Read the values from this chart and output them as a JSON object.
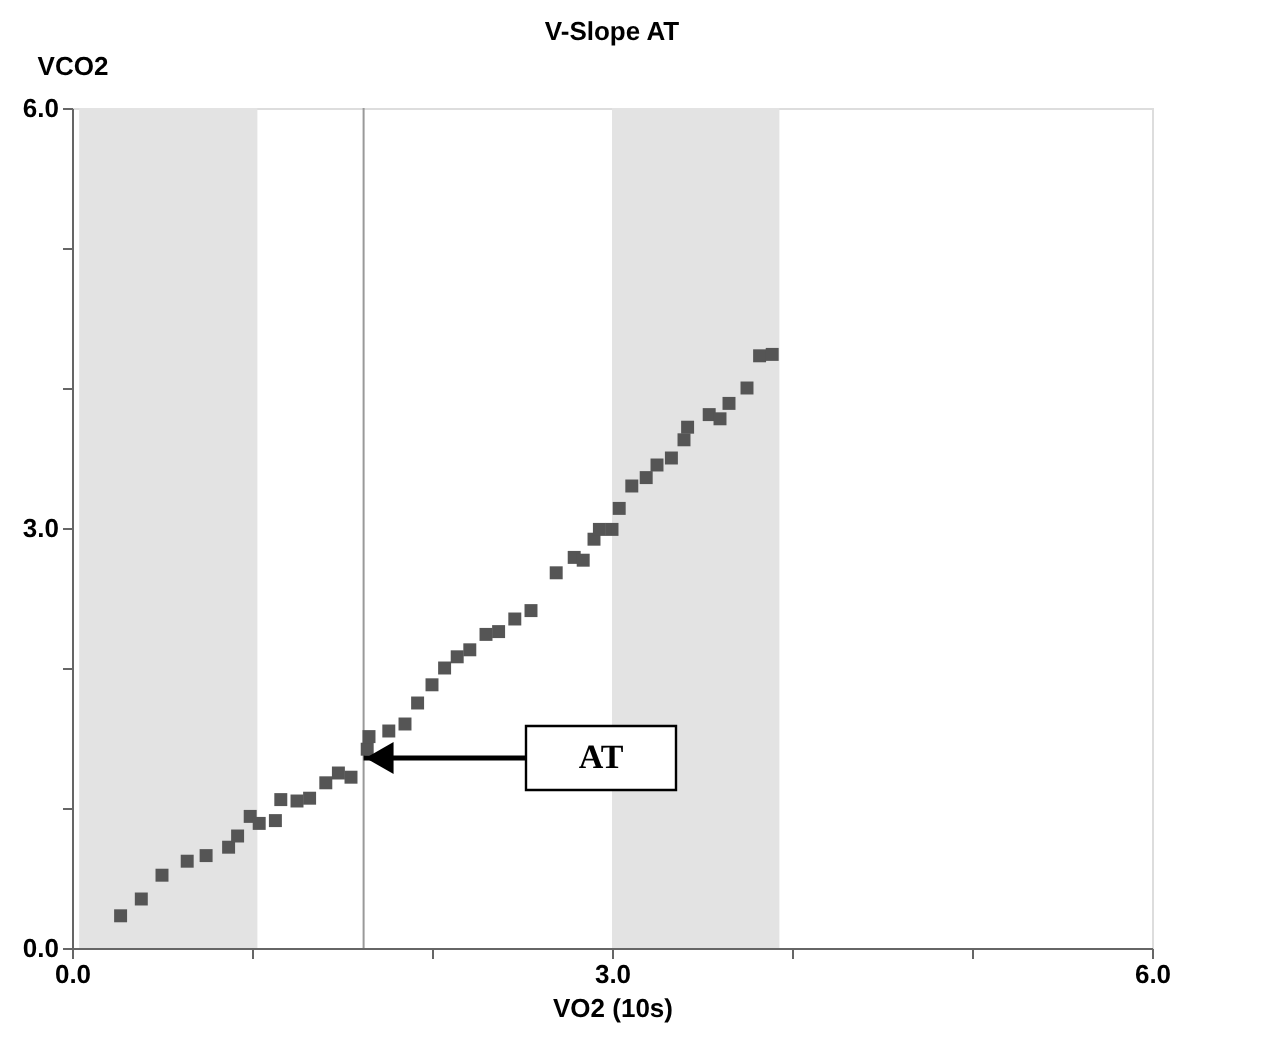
{
  "chart_data": {
    "type": "scatter",
    "title": "V-Slope AT",
    "xlabel": "VO2 (10s)",
    "ylabel": "VCO2",
    "x": [
      0.27,
      0.385,
      0.5,
      0.64,
      0.745,
      0.87,
      0.92,
      0.99,
      1.04,
      1.13,
      1.16,
      1.25,
      1.32,
      1.41,
      1.48,
      1.55,
      1.64,
      1.65,
      1.76,
      1.85,
      1.92,
      2.0,
      2.07,
      2.14,
      2.21,
      2.3,
      2.37,
      2.46,
      2.55,
      2.69,
      2.79,
      2.84,
      2.9,
      2.93,
      3.0,
      3.04,
      3.11,
      3.19,
      3.25,
      3.33,
      3.4,
      3.42,
      3.54,
      3.6,
      3.65,
      3.75,
      3.82,
      3.89
    ],
    "series": [
      {
        "color": "#555555",
        "values": [
          0.23,
          0.35,
          0.52,
          0.62,
          0.66,
          0.72,
          0.8,
          0.94,
          0.89,
          0.91,
          1.06,
          1.05,
          1.07,
          1.18,
          1.25,
          1.22,
          1.42,
          1.51,
          1.55,
          1.6,
          1.75,
          1.88,
          2.0,
          2.08,
          2.13,
          2.24,
          2.26,
          2.35,
          2.41,
          2.68,
          2.79,
          2.77,
          2.92,
          2.99,
          2.99,
          3.14,
          3.3,
          3.36,
          3.45,
          3.5,
          3.63,
          3.72,
          3.81,
          3.78,
          3.89,
          4.0,
          4.23,
          4.24
        ]
      }
    ],
    "marker": "square",
    "xlim": [
      0,
      6
    ],
    "ylim": [
      0,
      6
    ],
    "xticks": [
      {
        "value": 0,
        "label": "0.0"
      },
      {
        "value": 1,
        "label": null
      },
      {
        "value": 2,
        "label": null
      },
      {
        "value": 3,
        "label": "3.0"
      },
      {
        "value": 4,
        "label": null
      },
      {
        "value": 5,
        "label": null
      },
      {
        "value": 6,
        "label": "6.0"
      }
    ],
    "yticks": [
      {
        "value": 0,
        "label": "0.0"
      },
      {
        "value": 1,
        "label": null
      },
      {
        "value": 2,
        "label": null
      },
      {
        "value": 3,
        "label": "3.0"
      },
      {
        "value": 4,
        "label": null
      },
      {
        "value": 5,
        "label": null
      },
      {
        "value": 6,
        "label": "6.0"
      }
    ],
    "bands": [
      {
        "axis": "x",
        "from": 0.04,
        "to": 1.03,
        "color": "#e3e3e3"
      },
      {
        "axis": "x",
        "from": 3.0,
        "to": 3.93,
        "color": "#e3e3e3"
      }
    ],
    "ref_lines": [
      {
        "axis": "x",
        "value": 1.62,
        "color": "#999999"
      }
    ],
    "annotations": [
      "AT"
    ],
    "grid": false
  }
}
